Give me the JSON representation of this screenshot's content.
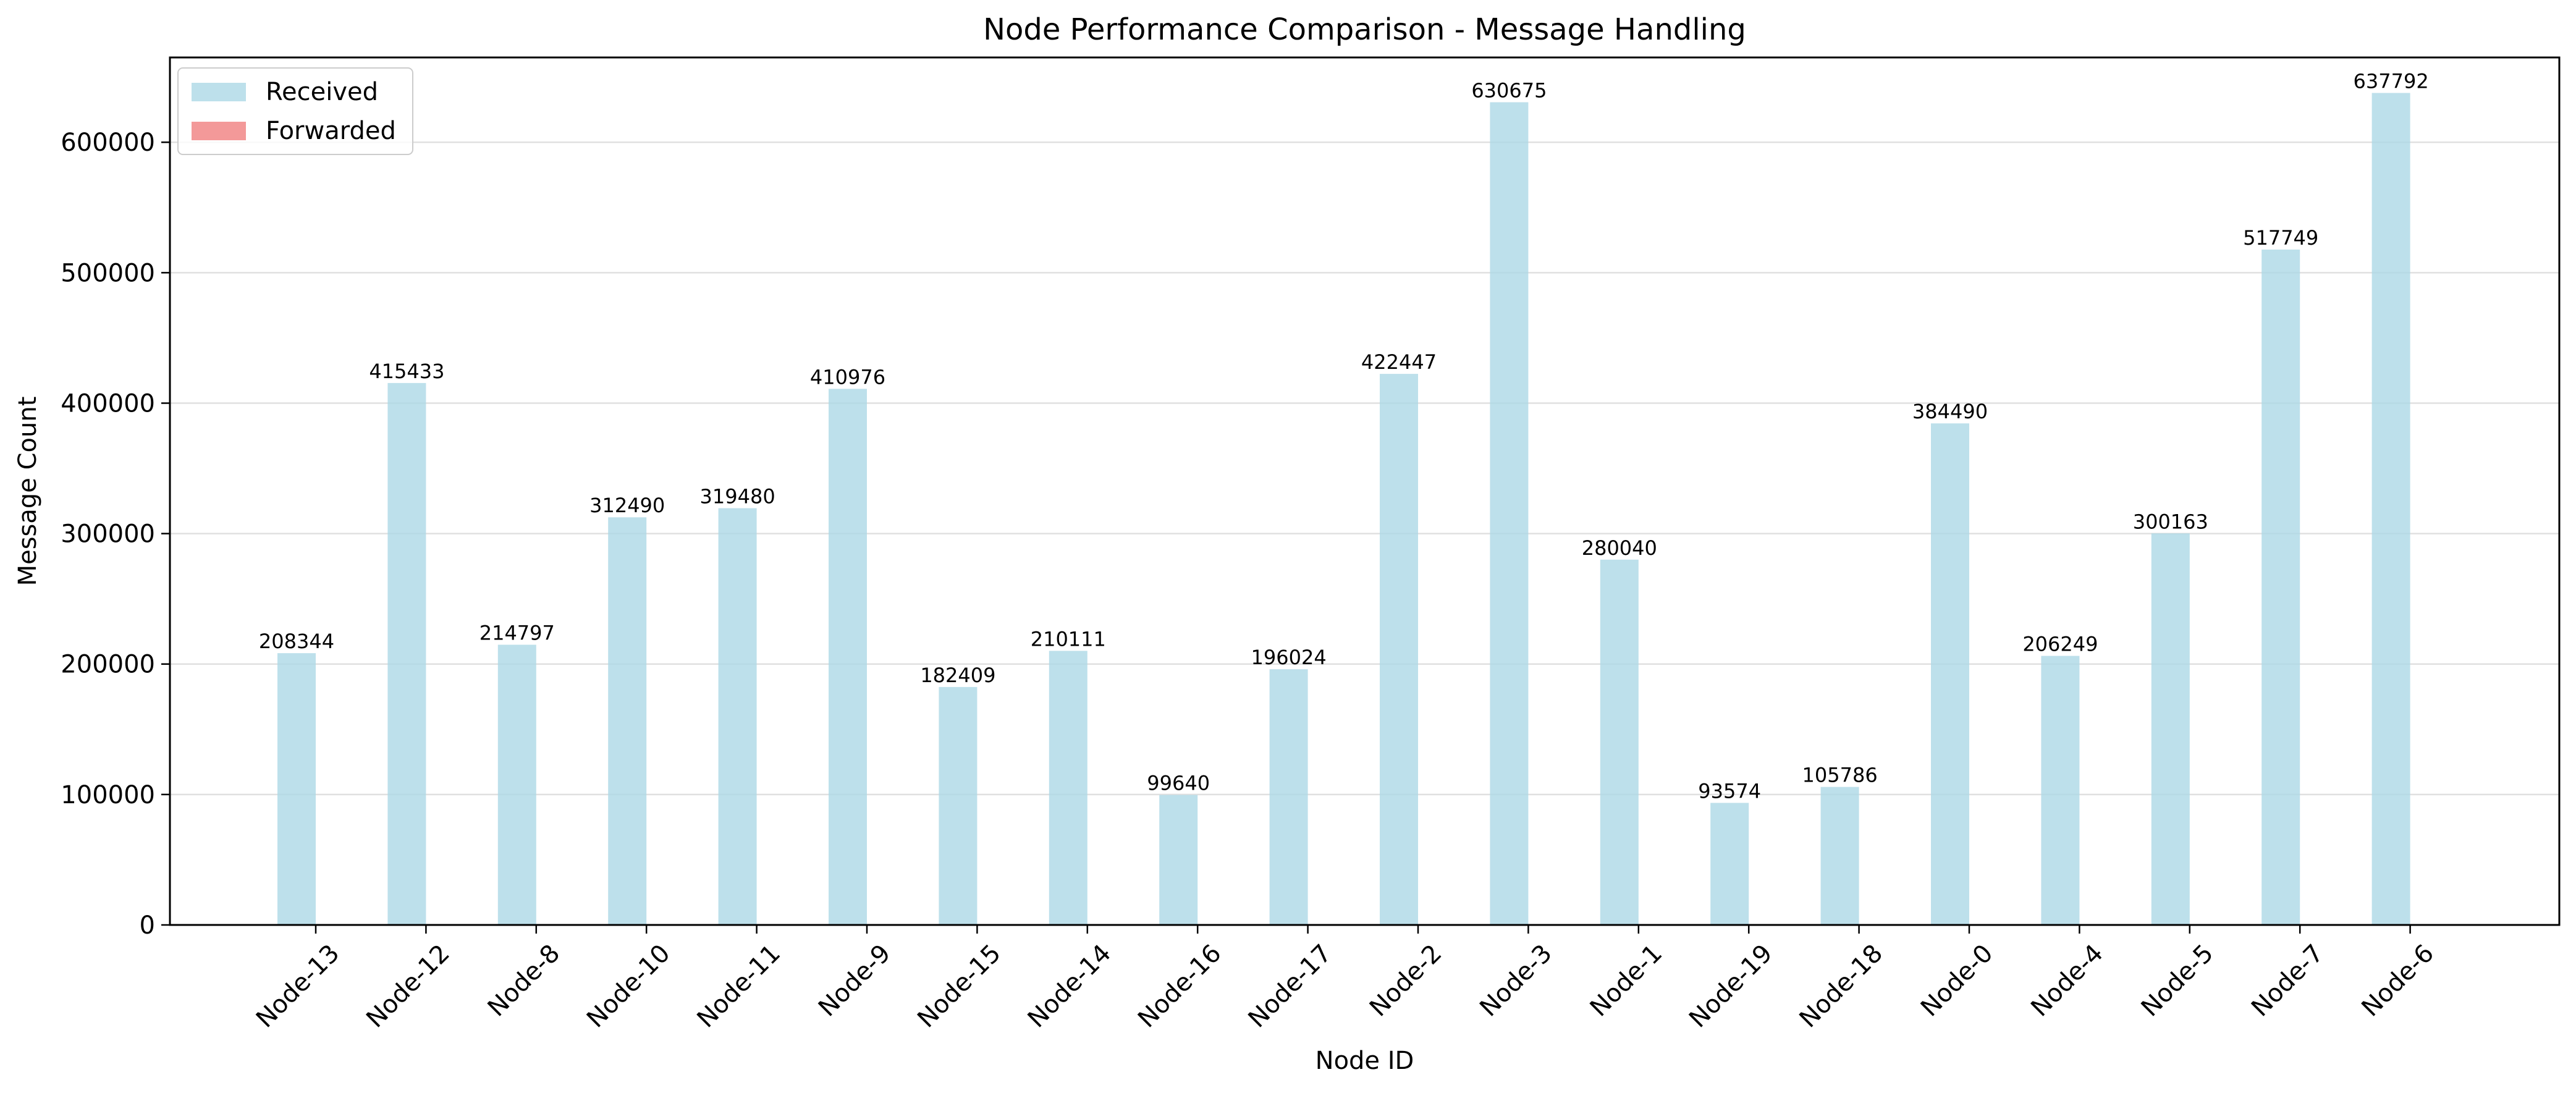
{
  "chart_data": {
    "type": "bar",
    "title": "Node Performance Comparison - Message Handling",
    "xlabel": "Node ID",
    "ylabel": "Message Count",
    "ylim": [
      0,
      665000
    ],
    "yticks": [
      0,
      100000,
      200000,
      300000,
      400000,
      500000,
      600000
    ],
    "ytick_labels": [
      "0",
      "100000",
      "200000",
      "300000",
      "400000",
      "500000",
      "600000"
    ],
    "grid": "horizontal",
    "legend_position": "top-left",
    "categories": [
      "Node-13",
      "Node-12",
      "Node-8",
      "Node-10",
      "Node-11",
      "Node-9",
      "Node-15",
      "Node-14",
      "Node-16",
      "Node-17",
      "Node-2",
      "Node-3",
      "Node-1",
      "Node-19",
      "Node-18",
      "Node-0",
      "Node-4",
      "Node-5",
      "Node-7",
      "Node-6"
    ],
    "series": [
      {
        "name": "Received",
        "color": "#add8e6",
        "values": [
          208344,
          415433,
          214797,
          312490,
          319480,
          410976,
          182409,
          210111,
          99640,
          196024,
          422447,
          630675,
          280040,
          93574,
          105786,
          384490,
          206249,
          300163,
          517749,
          637792
        ],
        "labels": [
          "208344",
          "415433",
          "214797",
          "312490",
          "319480",
          "410976",
          "182409",
          "210111",
          "99640",
          "196024",
          "422447",
          "630675",
          "280040",
          "93574",
          "105786",
          "384490",
          "206249",
          "300163",
          "517749",
          "637792"
        ]
      },
      {
        "name": "Forwarded",
        "color": "#f08080",
        "values": [
          0,
          0,
          0,
          0,
          0,
          0,
          0,
          0,
          0,
          0,
          0,
          0,
          0,
          0,
          0,
          0,
          0,
          0,
          0,
          0
        ]
      }
    ]
  }
}
